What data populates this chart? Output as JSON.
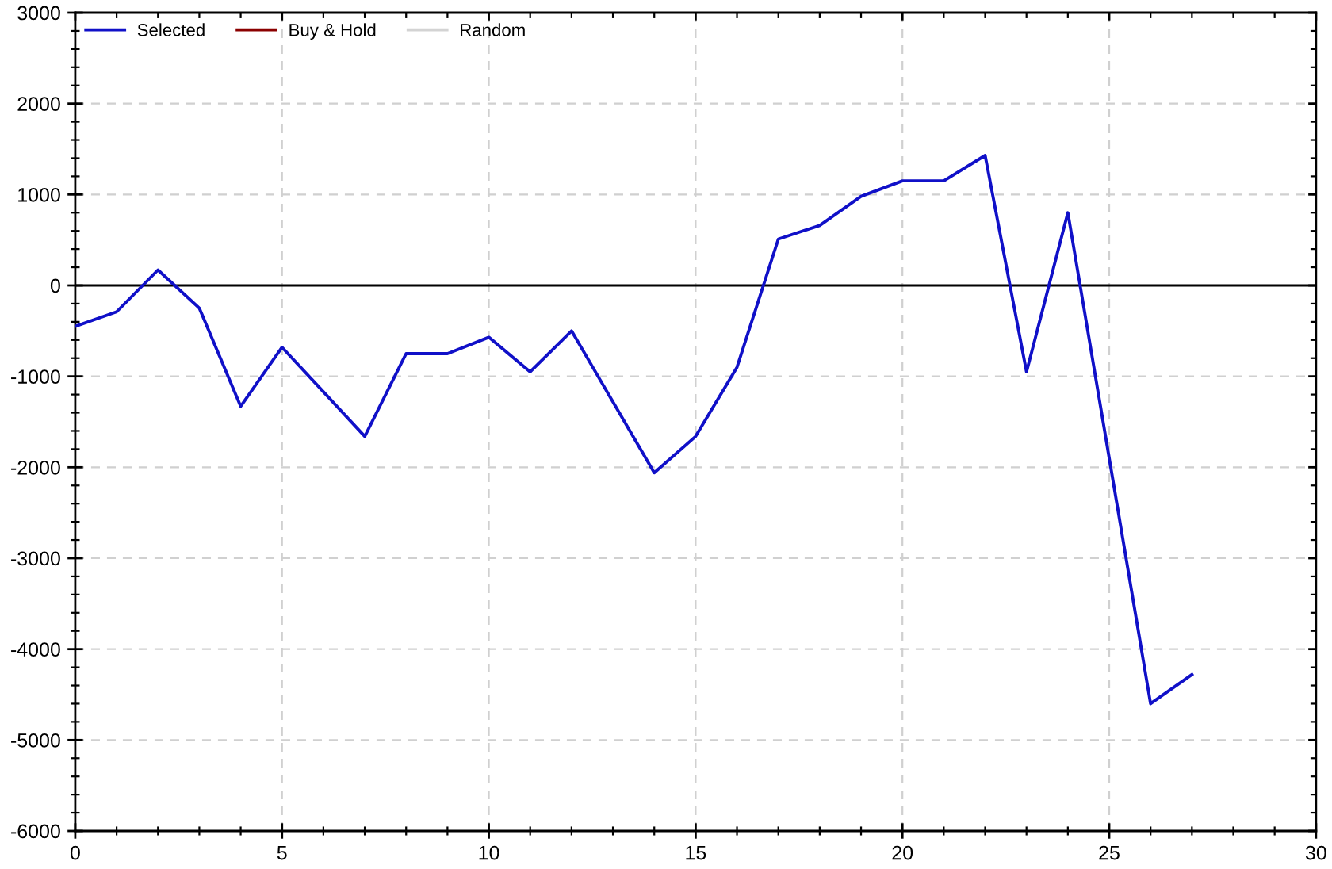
{
  "chart_data": {
    "type": "line",
    "x": [
      0,
      1,
      2,
      3,
      4,
      5,
      6,
      7,
      8,
      9,
      10,
      11,
      12,
      13,
      14,
      15,
      16,
      17,
      18,
      19,
      20,
      21,
      22,
      23,
      24,
      25,
      26,
      27
    ],
    "series": [
      {
        "name": "Selected",
        "color": "#1010c8",
        "values": [
          -450,
          -290,
          170,
          -250,
          -1330,
          -680,
          -1170,
          -1660,
          -750,
          -750,
          -570,
          -950,
          -500,
          -1280,
          -2060,
          -1660,
          -900,
          510,
          660,
          980,
          1150,
          1150,
          1430,
          -950,
          800,
          -1900,
          -4600,
          -4280
        ]
      },
      {
        "name": "Buy & Hold",
        "color": "#8b0000",
        "values": [
          null,
          null,
          null,
          null,
          null,
          null,
          null,
          null,
          null,
          null,
          null,
          null,
          null,
          null,
          null,
          null,
          null,
          null,
          null,
          null,
          null,
          null,
          null,
          null,
          null,
          null,
          null,
          null
        ]
      },
      {
        "name": "Random",
        "color": "#d3d3d3",
        "values": [
          null,
          null,
          null,
          null,
          null,
          null,
          null,
          null,
          null,
          null,
          null,
          null,
          null,
          null,
          null,
          null,
          null,
          null,
          null,
          null,
          null,
          null,
          null,
          null,
          null,
          null,
          null,
          null
        ]
      }
    ],
    "xlim": [
      0,
      30
    ],
    "ylim": [
      -6000,
      3000
    ],
    "xticks": [
      0,
      {
        "value": 1,
        "label": null
      },
      {
        "value": 2,
        "label": null
      },
      {
        "value": 3,
        "label": null
      },
      {
        "value": 4,
        "label": null
      },
      5,
      {
        "value": 6,
        "label": null
      },
      {
        "value": 7,
        "label": null
      },
      {
        "value": 8,
        "label": null
      },
      {
        "value": 9,
        "label": null
      },
      10,
      {
        "value": 11,
        "label": null
      },
      {
        "value": 12,
        "label": null
      },
      {
        "value": 13,
        "label": null
      },
      {
        "value": 14,
        "label": null
      },
      15,
      {
        "value": 16,
        "label": null
      },
      {
        "value": 17,
        "label": null
      },
      {
        "value": 18,
        "label": null
      },
      {
        "value": 19,
        "label": null
      },
      20,
      {
        "value": 21,
        "label": null
      },
      {
        "value": 22,
        "label": null
      },
      {
        "value": 23,
        "label": null
      },
      {
        "value": 24,
        "label": null
      },
      25,
      {
        "value": 26,
        "label": null
      },
      {
        "value": 27,
        "label": null
      },
      {
        "value": 28,
        "label": null
      },
      {
        "value": 29,
        "label": null
      },
      30
    ],
    "yticks": [
      -6000,
      {
        "value": -5800,
        "label": null
      },
      {
        "value": -5600,
        "label": null
      },
      {
        "value": -5400,
        "label": null
      },
      {
        "value": -5200,
        "label": null
      },
      -5000,
      {
        "value": -4800,
        "label": null
      },
      {
        "value": -4600,
        "label": null
      },
      {
        "value": -4400,
        "label": null
      },
      {
        "value": -4200,
        "label": null
      },
      -4000,
      {
        "value": -3800,
        "label": null
      },
      {
        "value": -3600,
        "label": null
      },
      {
        "value": -3400,
        "label": null
      },
      {
        "value": -3200,
        "label": null
      },
      -3000,
      {
        "value": -2800,
        "label": null
      },
      {
        "value": -2600,
        "label": null
      },
      {
        "value": -2400,
        "label": null
      },
      {
        "value": -2200,
        "label": null
      },
      -2000,
      {
        "value": -1800,
        "label": null
      },
      {
        "value": -1600,
        "label": null
      },
      {
        "value": -1400,
        "label": null
      },
      {
        "value": -1200,
        "label": null
      },
      -1000,
      {
        "value": -800,
        "label": null
      },
      {
        "value": -600,
        "label": null
      },
      {
        "value": -400,
        "label": null
      },
      {
        "value": -200,
        "label": null
      },
      0,
      {
        "value": 200,
        "label": null
      },
      {
        "value": 400,
        "label": null
      },
      {
        "value": 600,
        "label": null
      },
      {
        "value": 800,
        "label": null
      },
      1000,
      {
        "value": 1200,
        "label": null
      },
      {
        "value": 1400,
        "label": null
      },
      {
        "value": 1600,
        "label": null
      },
      {
        "value": 1800,
        "label": null
      },
      2000,
      {
        "value": 2200,
        "label": null
      },
      {
        "value": 2400,
        "label": null
      },
      {
        "value": 2600,
        "label": null
      },
      {
        "value": 2800,
        "label": null
      },
      3000
    ],
    "ref_lines": [
      {
        "axis": "y",
        "value": 0,
        "color": "#000000",
        "line_style": "solid"
      }
    ],
    "grid": true,
    "legend": "top left",
    "marker": "none",
    "line_style": "solid"
  }
}
